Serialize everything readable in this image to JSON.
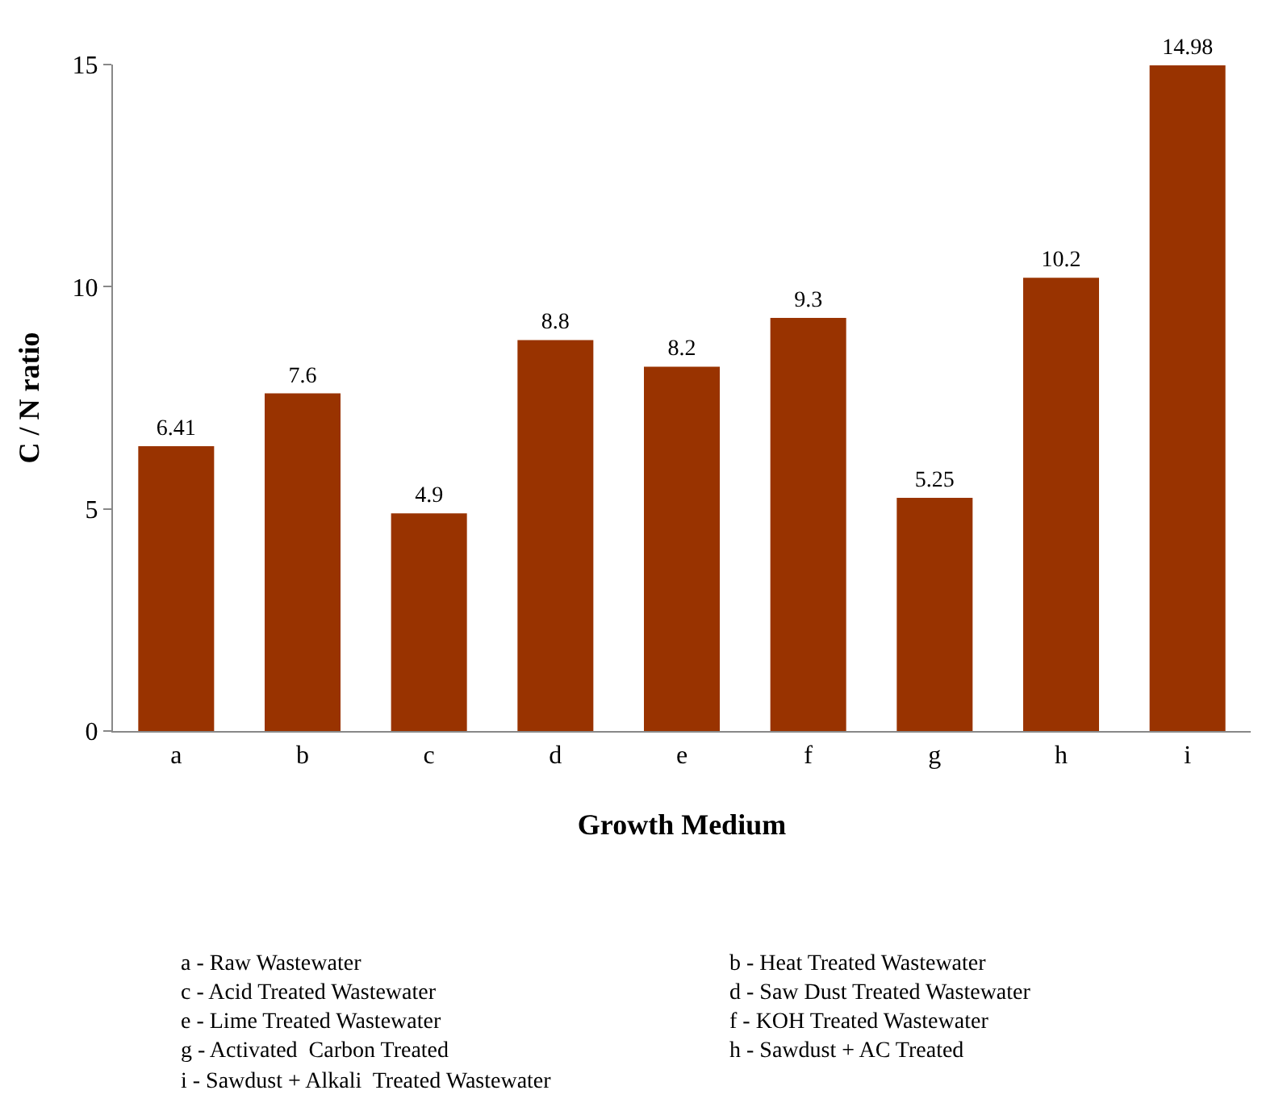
{
  "chart_data": {
    "type": "bar",
    "xlabel": "Growth Medium",
    "ylabel": "C / N ratio",
    "categories": [
      "a",
      "b",
      "c",
      "d",
      "e",
      "f",
      "g",
      "h",
      "i"
    ],
    "values": [
      6.41,
      7.6,
      4.9,
      8.8,
      8.2,
      9.3,
      5.25,
      10.2,
      14.98
    ],
    "color": "#993300",
    "ylim": [
      0,
      15
    ],
    "yticks": [
      0,
      5,
      10,
      15
    ],
    "grid": false,
    "legend": false,
    "data_labels": true,
    "annotations": [
      "a - Raw Wastewater",
      "b - Heat Treated Wastewater",
      "c - Acid Treated Wastewater",
      "d - Saw Dust Treated Wastewater",
      "e - Lime Treated Wastewater",
      "f - KOH Treated Wastewater",
      "g - Activated  Carbon Treated",
      "h - Sawdust + AC Treated",
      "i - Sawdust + Alkali  Treated Wastewater"
    ]
  }
}
